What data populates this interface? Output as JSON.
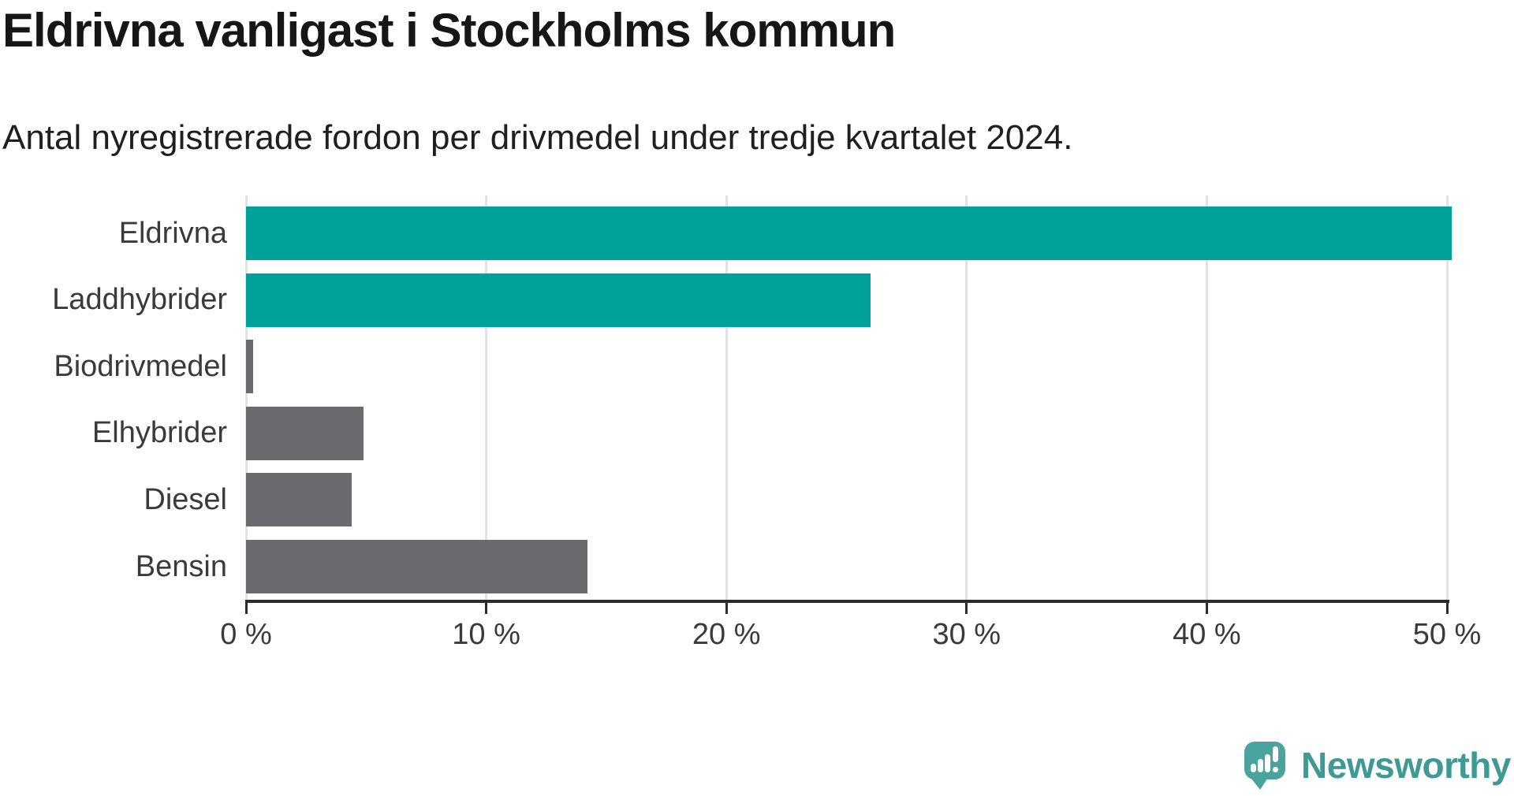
{
  "header": {
    "title": "Eldrivna vanligast i Stockholms kommun",
    "subtitle": "Antal nyregistrerade fordon per drivmedel under tredje kvartalet 2024."
  },
  "chart_data": {
    "type": "bar",
    "orientation": "horizontal",
    "title": "Eldrivna vanligast i Stockholms kommun",
    "subtitle": "Antal nyregistrerade fordon per drivmedel under tredje kvartalet 2024.",
    "categories": [
      "Eldrivna",
      "Laddhybrider",
      "Biodrivmedel",
      "Elhybrider",
      "Diesel",
      "Bensin"
    ],
    "values": [
      50.2,
      26.0,
      0.3,
      4.9,
      4.4,
      14.2
    ],
    "unit": "%",
    "xlim": [
      0,
      50
    ],
    "xtick_values": [
      0,
      10,
      20,
      30,
      40,
      50
    ],
    "xtick_labels": [
      "0 %",
      "10 %",
      "20 %",
      "30 %",
      "40 %",
      "50 %"
    ],
    "bar_colors": [
      "#00a09b",
      "#00a09b",
      "#6b6b6f",
      "#6b6b6f",
      "#6b6b6f",
      "#6b6b6f"
    ],
    "grid": "vertical-gridlines",
    "legend": "none"
  },
  "colors": {
    "highlight_teal": "#00a09b",
    "neutral_gray": "#6b6b6f",
    "gridline": "#e3e3e3",
    "axis_line": "#2c2c2c",
    "text_dark": "#161616",
    "label_gray": "#3a3a3a",
    "logo_teal": "#3e9a93"
  },
  "branding": {
    "logo_text": "Newsworthy",
    "logo_icon": "newsworthy-speech-bubble-chart-icon"
  }
}
